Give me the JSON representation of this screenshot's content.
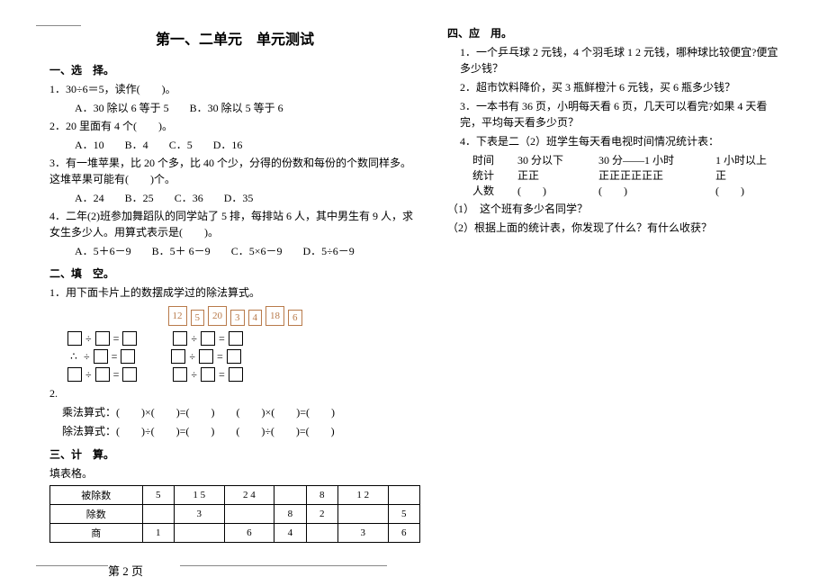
{
  "title": "第一、二单元　单元测试",
  "footer": "第 2 页",
  "sec1": {
    "head": "一、选　择。",
    "q1": "1．30÷6＝5，读作(　　)。",
    "q1a": "A．30 除以 6 等于 5",
    "q1b": "B．30 除以 5 等于 6",
    "q2": "2．20 里面有 4 个(　　)。",
    "q2a": "A．10",
    "q2b": "B．4",
    "q2c": "C．5",
    "q2d": "D．16",
    "q3": "3．有一堆苹果，比 20 个多，比 40 个少，分得的份数和每份的个数同样多。这堆苹果可能有(　　)个。",
    "q3a": "A．24",
    "q3b": "B．25",
    "q3c": "C．36",
    "q3d": "D．35",
    "q4": "4．二年(2)班参加舞蹈队的同学站了 5 排，每排站 6 人，其中男生有 9 人，求女生多少人。用算式表示是(　　)。",
    "q4a": "A．5＋6－9",
    "q4b": "B．5＋ 6－9",
    "q4c": "C．5×6－9",
    "q4d": "D．5÷6－9"
  },
  "sec2": {
    "head": "二、填　空。",
    "q1": "1．用下面卡片上的数摆成学过的除法算式。",
    "cards": [
      "12",
      "5",
      "20",
      "3",
      "4",
      "18",
      "6"
    ],
    "q2": "2.",
    "mul": "乘法算式：(　　)×(　　)=(　　)　　(　　)×(　　)=(　　)",
    "div": "除法算式：(　　)÷(　　)=(　　)　　(　　)÷(　　)=(　　)"
  },
  "sec3": {
    "head": "三、计　算。",
    "sub": "填表格。",
    "table": {
      "rows": [
        [
          "被除数",
          "5",
          "1 5",
          "2 4",
          "",
          "8",
          "1 2",
          ""
        ],
        [
          "除数",
          "",
          "3",
          "",
          "8",
          "2",
          "",
          "5"
        ],
        [
          "商",
          "1",
          "",
          "6",
          "4",
          "",
          "3",
          "6"
        ]
      ]
    }
  },
  "sec4": {
    "head": "四、应　用。",
    "q1": "1．一个乒乓球 2 元钱，4 个羽毛球 1 2 元钱，哪种球比较便宜?便宜多少钱？",
    "q2": "2．超市饮料降价，买 3 瓶鲜橙汁 6 元钱，买 6 瓶多少钱？",
    "q3": "3．一本书有 36 页，小明每天看 6 页，几天可以看完?如果 4 天看完，平均每天看多少页？",
    "q4": "4．下表是二（2）班学生每天看电视时间情况统计表：",
    "stat": {
      "h_time": "时间",
      "h1": "30 分以下",
      "h2": "30 分——1 小时",
      "h3": "1 小时以上",
      "r_tally": "统计",
      "t1": "正正",
      "t2": "正正正正正正",
      "t3": "正",
      "r_count": "人数",
      "c1": "(　　)",
      "c2": "(　　)",
      "c3": "(　　)"
    },
    "q4_1": "（1）　这个班有多少名同学？",
    "q4_2": "（2）根据上面的统计表，你发现了什么？有什么收获？"
  }
}
